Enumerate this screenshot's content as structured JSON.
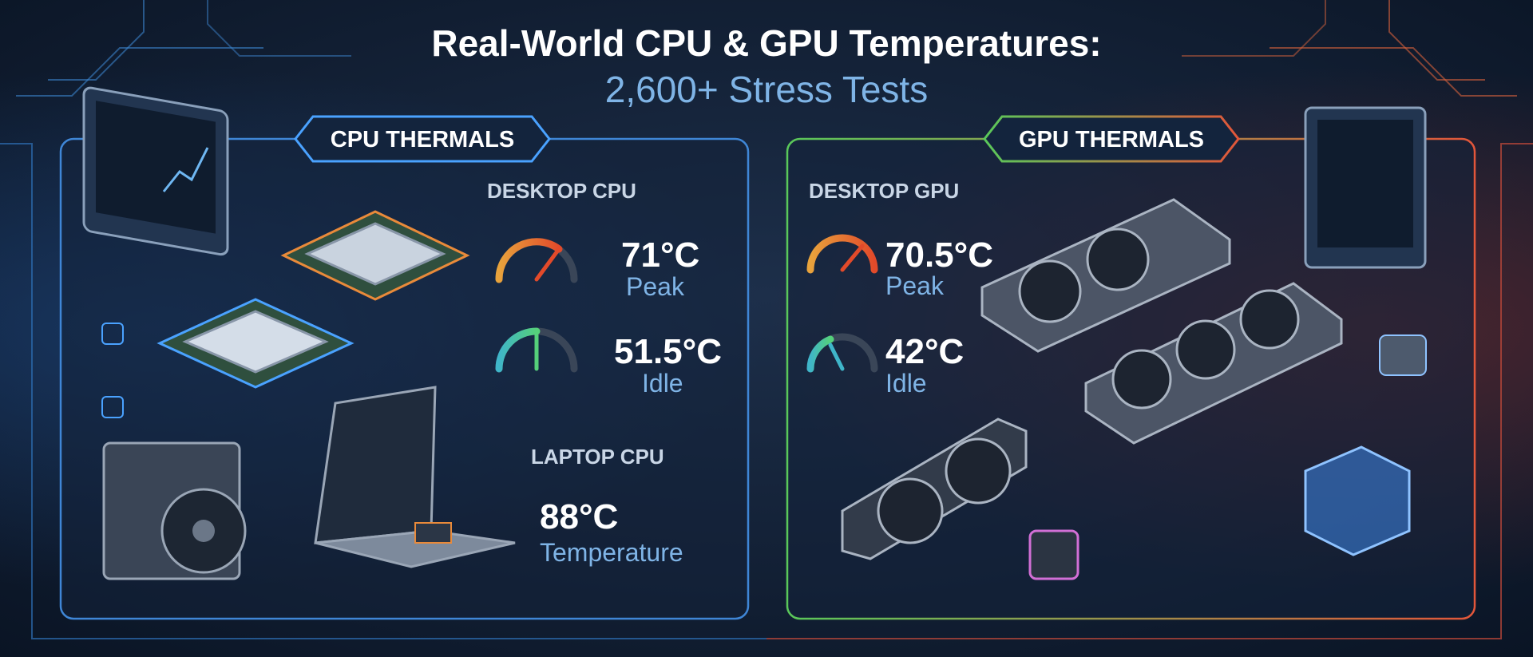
{
  "header": {
    "title": "Real-World CPU & GPU Temperatures:",
    "subtitle": "2,600+ Stress Tests"
  },
  "cpu": {
    "badge": "CPU THERMALS",
    "desktop": {
      "heading": "DESKTOP CPU",
      "peak": {
        "value": "71°C",
        "label": "Peak"
      },
      "idle": {
        "value": "51.5°C",
        "label": "Idle"
      }
    },
    "laptop": {
      "heading": "LAPTOP CPU",
      "temp": {
        "value": "88°C",
        "label": "Temperature"
      }
    }
  },
  "gpu": {
    "badge": "GPU THERMALS",
    "desktop": {
      "heading": "DESKTOP GPU",
      "peak": {
        "value": "70.5°C",
        "label": "Peak"
      },
      "idle": {
        "value": "42°C",
        "label": "Idle"
      }
    }
  }
}
